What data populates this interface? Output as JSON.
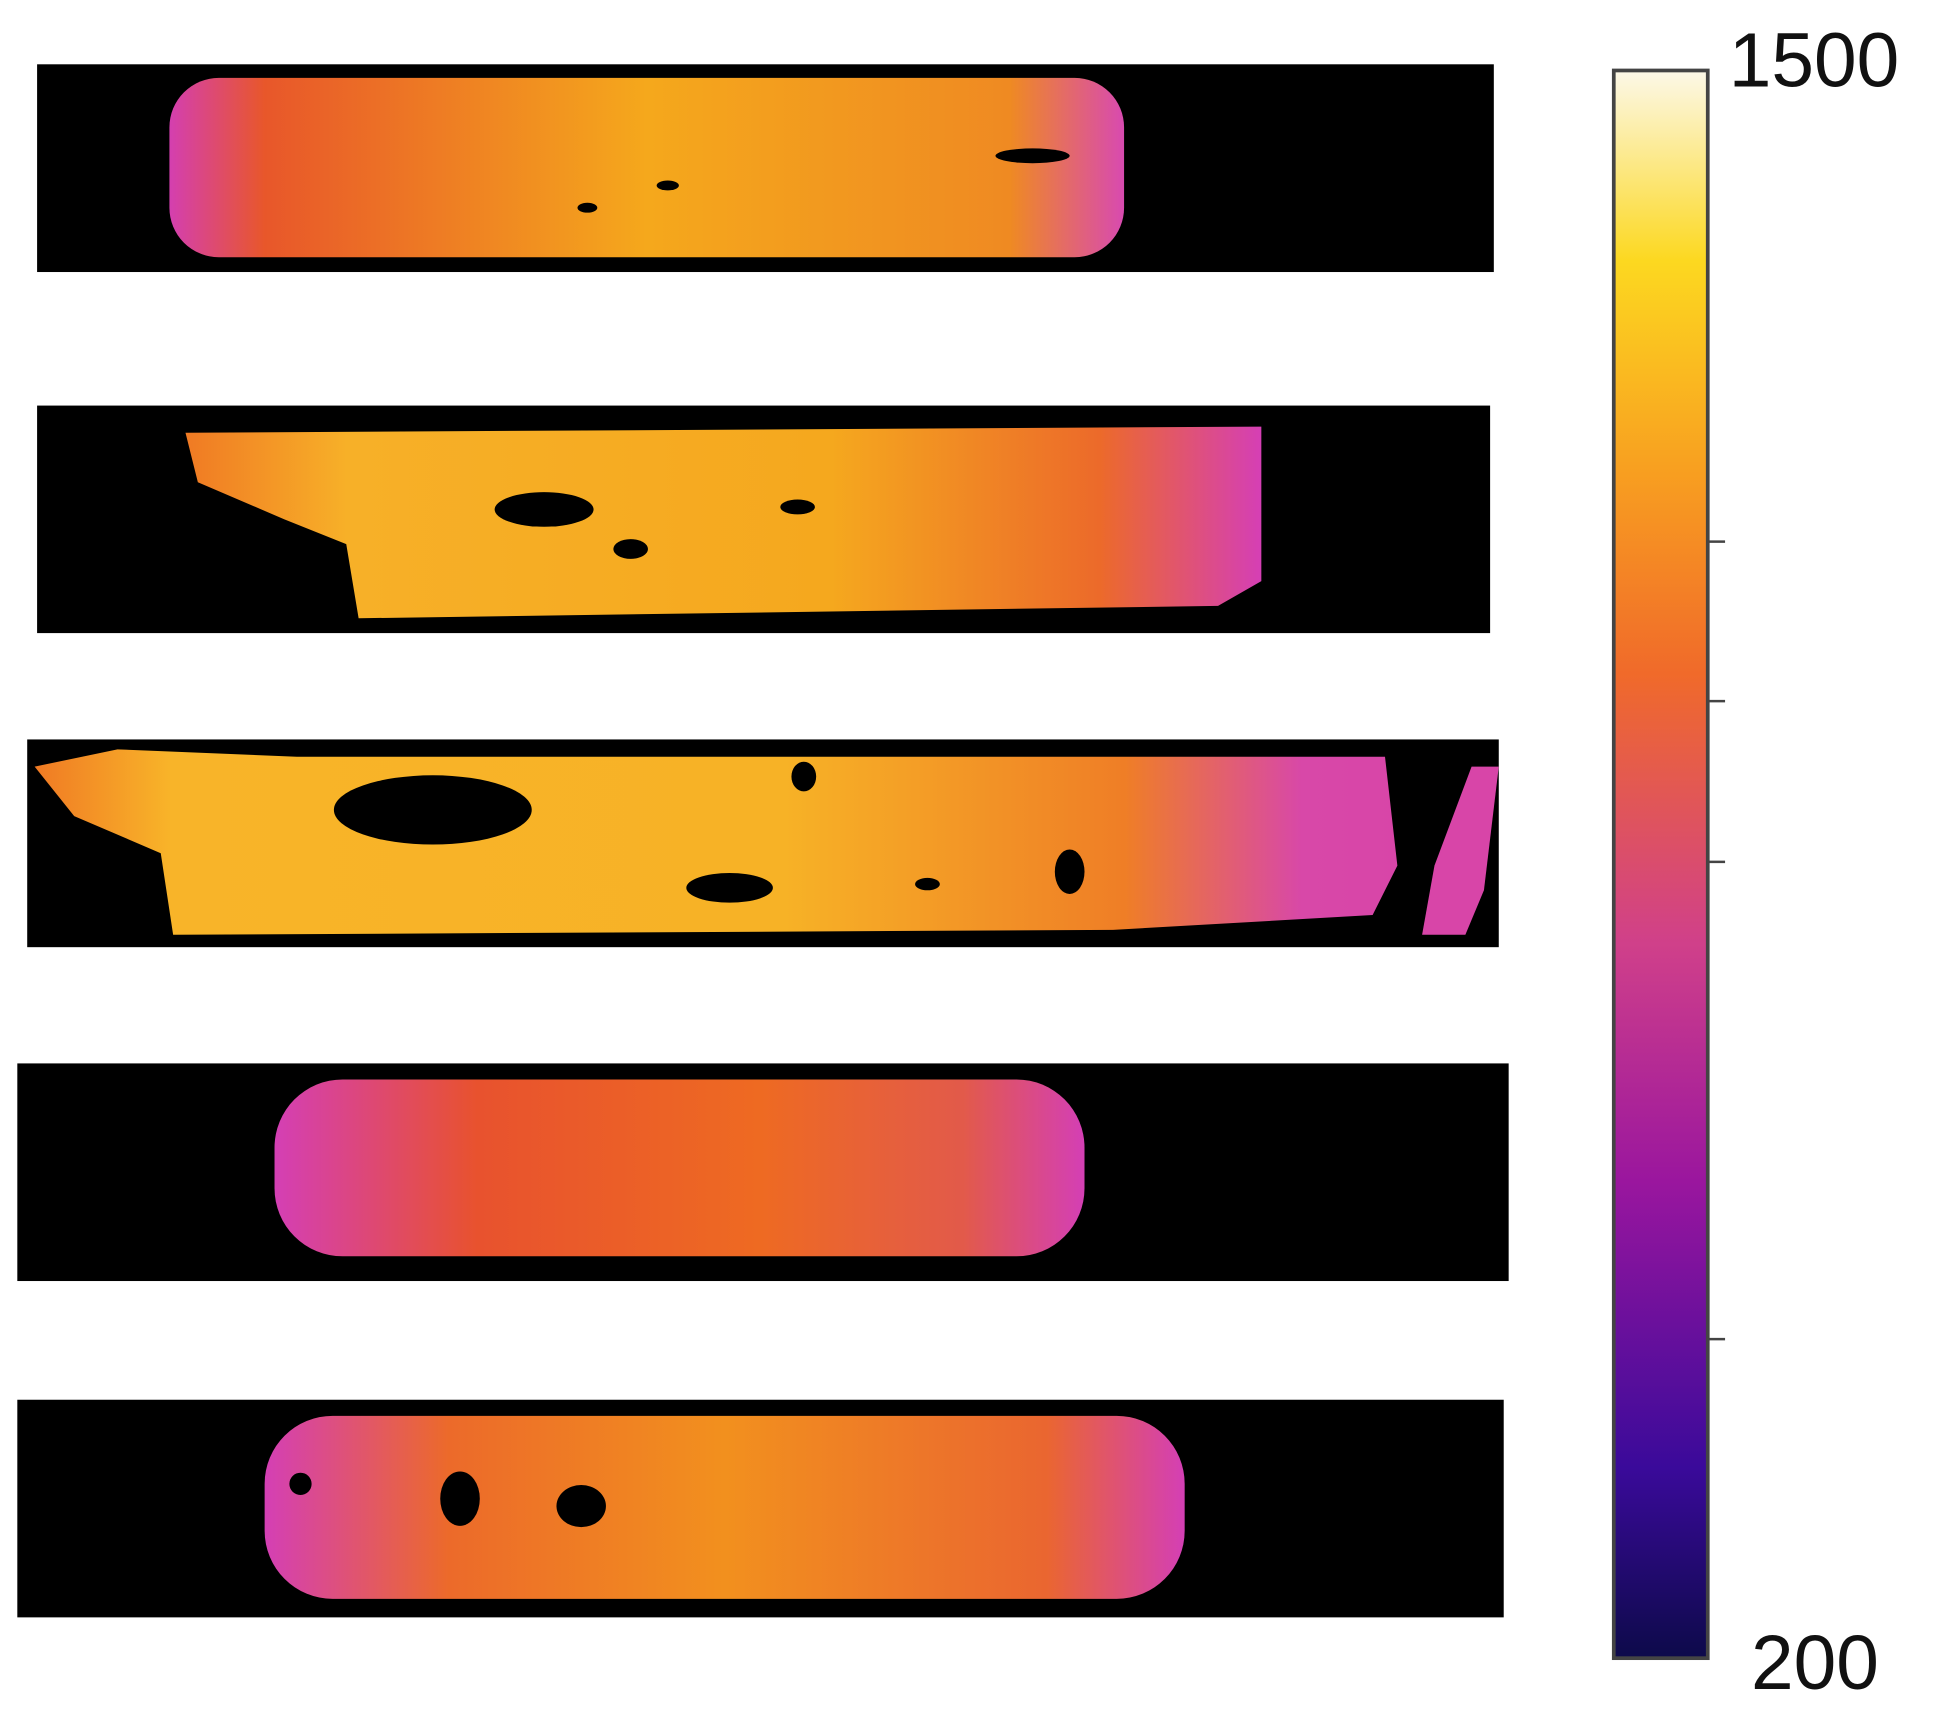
{
  "colorbar": {
    "max": 1500,
    "min": 200
  }
}
